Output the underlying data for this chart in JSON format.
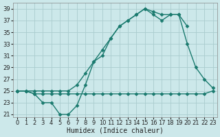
{
  "bg_color": "#cce8ea",
  "grid_color": "#aaccce",
  "line_color": "#1a7a6e",
  "line_width": 1.0,
  "marker": "D",
  "marker_size": 2.5,
  "xlabel": "Humidex (Indice chaleur)",
  "xlabel_fontsize": 7,
  "tick_fontsize": 6,
  "xlim": [
    -0.5,
    23.5
  ],
  "ylim": [
    20.5,
    40.0
  ],
  "xticks": [
    0,
    1,
    2,
    3,
    4,
    5,
    6,
    7,
    8,
    9,
    10,
    11,
    12,
    13,
    14,
    15,
    16,
    17,
    18,
    19,
    20,
    21,
    22,
    23
  ],
  "yticks": [
    21,
    23,
    25,
    27,
    29,
    31,
    33,
    35,
    37,
    39
  ],
  "curve_bottom_x": [
    0,
    1,
    2,
    3,
    4,
    5,
    6,
    7,
    8,
    9,
    10,
    11,
    12,
    13,
    14,
    15,
    16,
    17,
    18,
    19,
    20,
    21,
    22,
    23
  ],
  "curve_bottom_y": [
    25,
    25,
    24.5,
    24.5,
    24.5,
    24.5,
    24.5,
    24.5,
    24.5,
    24.5,
    24.5,
    24.5,
    24.5,
    24.5,
    24.5,
    24.5,
    24.5,
    24.5,
    24.5,
    24.5,
    24.5,
    24.5,
    24.5,
    25
  ],
  "curve_top_x": [
    0,
    1,
    2,
    3,
    4,
    5,
    6,
    7,
    8,
    9,
    10,
    11,
    12,
    13,
    14,
    15,
    16,
    17,
    18,
    19,
    20,
    21,
    22,
    23
  ],
  "curve_top_y": [
    25,
    25,
    25,
    25,
    25,
    25,
    25,
    26,
    28,
    30,
    32,
    34,
    36,
    37,
    38,
    39,
    38.5,
    38,
    38,
    38,
    36,
    null,
    null,
    null
  ],
  "curve_mid_x": [
    0,
    1,
    2,
    3,
    4,
    5,
    6,
    7,
    8,
    9,
    10,
    11,
    12,
    13,
    14,
    15,
    16,
    17,
    18,
    19,
    20,
    21,
    22,
    23
  ],
  "curve_mid_y": [
    25,
    25,
    24.5,
    23,
    23,
    21,
    21,
    22.5,
    26,
    30,
    31,
    34,
    36,
    37,
    38,
    39,
    38,
    37,
    38,
    38,
    33,
    29,
    27,
    25.5
  ]
}
